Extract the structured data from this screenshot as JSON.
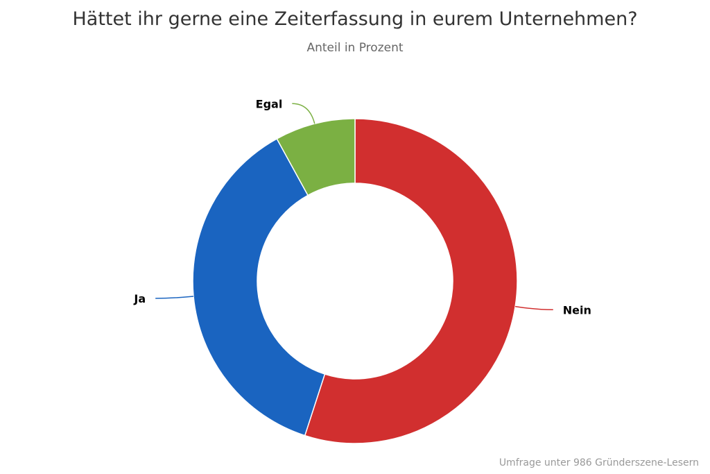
{
  "chart_data": {
    "type": "pie",
    "variant": "donut",
    "title": "Hättet ihr gerne eine Zeiterfassung in eurem Unternehmen?",
    "subtitle": "Anteil in Prozent",
    "credits": "Umfrage unter 986 Gründerszene-Lesern",
    "categories": [
      "Nein",
      "Ja",
      "Egal"
    ],
    "values": [
      55,
      37,
      8
    ],
    "unit": "%",
    "colors": {
      "Nein": "#d12f2f",
      "Ja": "#1a64c0",
      "Egal": "#7bb043"
    },
    "start_angle_deg": 0,
    "direction": "clockwise",
    "legend": "none"
  }
}
